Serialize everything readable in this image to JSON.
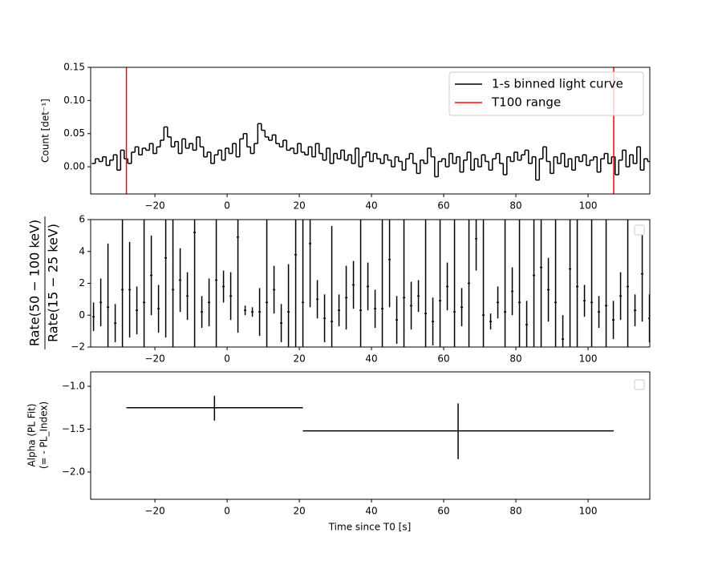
{
  "chart_data": [
    {
      "type": "step",
      "ylabel": "Count [det⁻¹]",
      "xlim": [
        -37.8,
        117.1
      ],
      "ylim": [
        -0.041,
        0.15
      ],
      "xticks": [
        {
          "value": -20,
          "label": "−20"
        },
        0,
        20,
        40,
        60,
        80,
        100
      ],
      "yticks": [
        {
          "value": 0,
          "label": "0.00"
        },
        0.05,
        {
          "value": 0.1,
          "label": "0.10"
        },
        0.15
      ],
      "legend": "upper right",
      "series": [
        {
          "name": "1-s binned light curve",
          "color": "#000000",
          "x": [
            -37,
            -36,
            -35,
            -34,
            -33,
            -32,
            -31,
            -30,
            -29,
            -28,
            -27,
            -26,
            -25,
            -24,
            -23,
            -22,
            -21,
            -20,
            -19,
            -18,
            -17,
            -16,
            -15,
            -14,
            -13,
            -12,
            -11,
            -10,
            -9,
            -8,
            -7,
            -6,
            -5,
            -4,
            -3,
            -2,
            -1,
            0,
            1,
            2,
            3,
            4,
            5,
            6,
            7,
            8,
            9,
            10,
            11,
            12,
            13,
            14,
            15,
            16,
            17,
            18,
            19,
            20,
            21,
            22,
            23,
            24,
            25,
            26,
            27,
            28,
            29,
            30,
            31,
            32,
            33,
            34,
            35,
            36,
            37,
            38,
            39,
            40,
            41,
            42,
            43,
            44,
            45,
            46,
            47,
            48,
            49,
            50,
            51,
            52,
            53,
            54,
            55,
            56,
            57,
            58,
            59,
            60,
            61,
            62,
            63,
            64,
            65,
            66,
            67,
            68,
            69,
            70,
            71,
            72,
            73,
            74,
            75,
            76,
            77,
            78,
            79,
            80,
            81,
            82,
            83,
            84,
            85,
            86,
            87,
            88,
            89,
            90,
            91,
            92,
            93,
            94,
            95,
            96,
            97,
            98,
            99,
            100,
            101,
            102,
            103,
            104,
            105,
            106,
            107,
            108,
            109,
            110,
            111,
            112,
            113,
            114,
            115,
            116,
            117
          ],
          "values": [
            0.005,
            0.012,
            0.008,
            0.015,
            0.002,
            0.01,
            0.018,
            -0.005,
            0.025,
            0.012,
            0.005,
            0.022,
            0.03,
            0.018,
            0.028,
            0.025,
            0.035,
            0.02,
            0.03,
            0.04,
            0.06,
            0.045,
            0.03,
            0.038,
            0.02,
            0.042,
            0.028,
            0.035,
            0.025,
            0.045,
            0.03,
            0.015,
            0.022,
            0.005,
            0.018,
            0.025,
            0.01,
            0.028,
            0.02,
            0.035,
            0.015,
            0.042,
            0.05,
            0.03,
            0.02,
            0.035,
            0.065,
            0.055,
            0.045,
            0.04,
            0.048,
            0.035,
            0.03,
            0.04,
            0.025,
            0.028,
            0.02,
            0.035,
            0.022,
            0.018,
            0.03,
            0.015,
            0.035,
            0.02,
            0.01,
            0.028,
            0.005,
            0.02,
            0.012,
            0.025,
            0.01,
            0.018,
            0.005,
            0.028,
            0.0,
            0.015,
            0.022,
            0.008,
            0.02,
            0.012,
            0.005,
            0.018,
            0.01,
            0.0,
            0.015,
            0.008,
            -0.005,
            0.012,
            0.02,
            0.005,
            -0.01,
            0.01,
            0.005,
            0.028,
            0.015,
            -0.015,
            0.008,
            0.012,
            0.0,
            0.02,
            0.005,
            0.015,
            -0.008,
            0.01,
            0.022,
            -0.005,
            0.012,
            0.0,
            0.018,
            0.008,
            -0.005,
            0.012,
            0.02,
            0.005,
            -0.012,
            0.015,
            0.008,
            0.022,
            0.01,
            0.018,
            0.025,
            0.005,
            0.015,
            -0.02,
            0.012,
            0.03,
            0.008,
            -0.01,
            0.015,
            0.005,
            0.02,
            0.0,
            0.012,
            -0.005,
            0.015,
            0.008,
            0.018,
            0.002,
            0.01,
            0.015,
            -0.008,
            0.012,
            0.02,
            0.005,
            0.015,
            -0.012,
            0.01,
            0.025,
            0.0,
            0.018,
            0.005,
            0.03,
            -0.005,
            0.012,
            0.008
          ]
        }
      ],
      "vlines": {
        "name": "T100 range",
        "color": "#ff0000",
        "x": [
          -27.9,
          107.1
        ]
      }
    },
    {
      "type": "errorbar",
      "ylabel_numerator": "Rate(50 − 100 keV)",
      "ylabel_denominator": "Rate(15 − 25 keV)",
      "xlim": [
        -37.8,
        117.1
      ],
      "ylim": [
        -2,
        6
      ],
      "xticks": [
        {
          "value": -20,
          "label": "−20"
        },
        0,
        20,
        40,
        60,
        80,
        100
      ],
      "yticks": [
        {
          "value": -2,
          "label": "−2"
        },
        0,
        2,
        4,
        6
      ],
      "color": "#000000",
      "x": [
        -37,
        -35,
        -33,
        -31,
        -29,
        -27,
        -25,
        -23,
        -21,
        -19,
        -17,
        -15,
        -13,
        -11,
        -9,
        -7,
        -5,
        -3,
        -1,
        1,
        3,
        5,
        7,
        9,
        11,
        13,
        15,
        17,
        19,
        21,
        23,
        25,
        27,
        29,
        31,
        33,
        35,
        37,
        39,
        41,
        43,
        45,
        47,
        49,
        51,
        53,
        55,
        57,
        59,
        61,
        63,
        65,
        67,
        69,
        71,
        73,
        75,
        77,
        79,
        81,
        83,
        85,
        87,
        89,
        91,
        93,
        95,
        97,
        99,
        101,
        103,
        105,
        107,
        109,
        111,
        113,
        115,
        117
      ],
      "values": [
        -0.1,
        0.8,
        0.5,
        -0.5,
        1.6,
        1.6,
        0.3,
        0.8,
        2.5,
        0.4,
        3.6,
        1.6,
        2.2,
        1.2,
        5.2,
        0.2,
        0.8,
        2.2,
        1.8,
        1.2,
        4.9,
        0.3,
        0.2,
        0.2,
        0.8,
        1.6,
        -0.5,
        0.2,
        3.8,
        0.8,
        4.5,
        1.0,
        -0.2,
        -0.4,
        0.3,
        1.1,
        1.9,
        0.3,
        1.8,
        0.4,
        0.4,
        3.5,
        -0.3,
        1.1,
        0.6,
        1.2,
        0.1,
        -0.4,
        0.9,
        1.8,
        0.2,
        0.5,
        2.0,
        4.8,
        0.0,
        -0.4,
        0.8,
        0.2,
        1.5,
        0.8,
        -0.6,
        2.5,
        3.0,
        1.6,
        0.8,
        -1.5,
        2.9,
        1.8,
        0.9,
        0.8,
        0.2,
        0.6,
        -0.3,
        1.2,
        1.8,
        0.3,
        2.6,
        -0.2
      ],
      "errors": [
        0.9,
        1.5,
        4,
        1.2,
        5,
        3,
        1.5,
        8,
        2.5,
        1.5,
        5,
        6,
        2,
        1.5,
        8,
        1,
        1.5,
        6,
        1,
        1.5,
        6,
        0.3,
        0.3,
        1.5,
        6,
        1.5,
        1.2,
        3,
        6,
        8,
        4,
        1.2,
        1.5,
        6,
        1,
        2,
        1.5,
        8,
        1.5,
        1.2,
        6,
        3,
        1.5,
        8,
        1.5,
        1,
        6,
        1.5,
        8,
        1.5,
        8,
        1.2,
        6,
        2,
        8,
        0.5,
        1,
        6,
        1.5,
        8,
        1.5,
        5,
        6,
        2,
        8,
        1.5,
        5,
        8,
        1,
        8,
        1,
        8,
        1.2,
        1.5,
        8,
        1,
        3,
        1.5
      ]
    },
    {
      "type": "xyerror",
      "ylabel_lines": [
        "Alpha (PL Fit)",
        "(=  - PL_Index)"
      ],
      "xlabel": "Time since T0 [s]",
      "xlim": [
        -37.8,
        117.1
      ],
      "ylim": [
        -2.318,
        -0.832
      ],
      "xticks": [
        {
          "value": -20,
          "label": "−20"
        },
        0,
        20,
        40,
        60,
        80,
        100
      ],
      "yticks": [
        {
          "value": -2,
          "label": "−2.0"
        },
        {
          "value": -1.5,
          "label": "−1.5"
        },
        {
          "value": -1,
          "label": "−1.0"
        }
      ],
      "color": "#000000",
      "x": [
        -3.5,
        64
      ],
      "xerr_minus": [
        24.4,
        43
      ],
      "xerr_plus": [
        24.5,
        43.1
      ],
      "values": [
        -1.25,
        -1.52
      ],
      "yerr_minus": [
        0.15,
        0.33
      ],
      "yerr_plus": [
        0.14,
        0.32
      ]
    }
  ]
}
